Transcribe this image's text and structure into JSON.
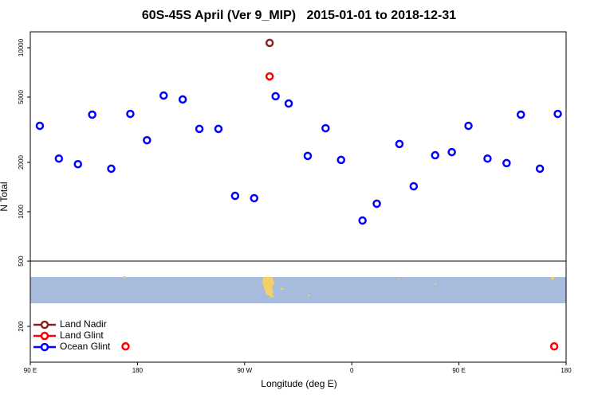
{
  "chart_data": {
    "type": "scatter",
    "title": "60S-45S April (Ver 9_MIP)   2015-01-01 to 2018-12-31",
    "x_label": "Longitude (deg E)",
    "y_label": "N Total",
    "log_y": true,
    "legend": "bottom-left",
    "xlim": [
      90,
      540
    ],
    "xticks": [
      {
        "value": 90,
        "label": "90 E"
      },
      {
        "value": 180,
        "label": "180"
      },
      {
        "value": 270,
        "label": "90 W"
      },
      {
        "value": 360,
        "label": "0"
      },
      {
        "value": 450,
        "label": "90 E"
      },
      {
        "value": 540,
        "label": "180"
      }
    ],
    "ylim": [
      121,
      12500
    ],
    "yticks": [
      200,
      500,
      1000,
      2000,
      5000,
      10000
    ],
    "series": [
      {
        "name": "Land Nadir",
        "color": "#8b2323",
        "x": [
          291
        ],
        "values": [
          10700
        ]
      },
      {
        "name": "Land Glint",
        "color": "#ff0000",
        "x": [
          291,
          170,
          530
        ],
        "values": [
          6690,
          151,
          151
        ]
      },
      {
        "name": "Ocean Glint",
        "color": "#0000ff",
        "x": [
          98,
          114,
          130,
          142,
          158,
          174,
          188,
          202,
          218,
          232,
          248,
          262,
          278,
          296,
          307,
          323,
          338,
          351,
          369,
          381,
          400,
          412,
          430,
          444,
          458,
          474,
          490,
          502,
          518,
          533
        ],
        "values": [
          3340,
          2110,
          1950,
          3910,
          1830,
          3950,
          2730,
          5110,
          4840,
          3200,
          3200,
          1250,
          1210,
          5060,
          4570,
          2190,
          3230,
          2070,
          884,
          1120,
          2590,
          1430,
          2210,
          2310,
          3340,
          2110,
          1980,
          3910,
          1830,
          3950
        ]
      }
    ]
  }
}
